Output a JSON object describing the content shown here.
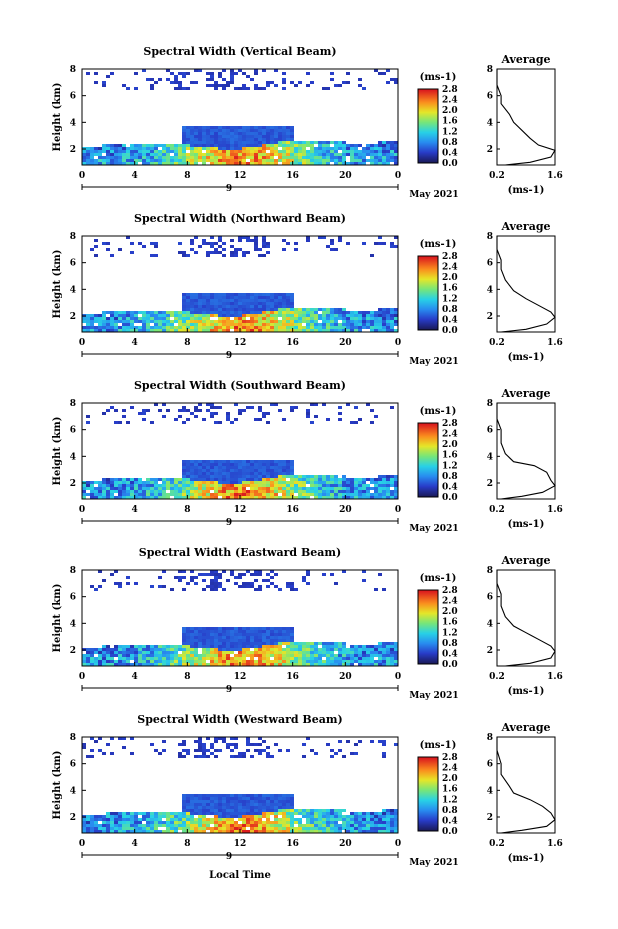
{
  "chart_data": [
    {
      "type": "heatmap",
      "title": "Spectral Width (Vertical Beam)",
      "ylabel": "Height (km)",
      "x_ticks": [
        "0",
        "4",
        "8",
        "12",
        "16",
        "20",
        "0"
      ],
      "y_ticks": [
        "2",
        "4",
        "6",
        "8"
      ],
      "xlim": [
        0,
        24
      ],
      "ylim": [
        0.8,
        8
      ],
      "day_label": "9",
      "date_label": "May 2021",
      "colorbar_unit": "(ms-1)",
      "colorbar_ticks": [
        "0.0",
        "0.4",
        "0.8",
        "1.2",
        "1.6",
        "2.0",
        "2.4",
        "2.8"
      ],
      "avg_title": "Average",
      "avg_xlabel": "(ms-1)",
      "avg_x_ticks": [
        "0.2",
        "1.6"
      ],
      "avg_y_ticks": [
        "2",
        "4",
        "6",
        "8"
      ],
      "avg_profile": [
        [
          0.2,
          8.0
        ],
        [
          0.2,
          6.8
        ],
        [
          0.3,
          6.0
        ],
        [
          0.3,
          5.4
        ],
        [
          0.5,
          4.6
        ],
        [
          0.6,
          4.0
        ],
        [
          0.8,
          3.4
        ],
        [
          1.0,
          2.8
        ],
        [
          1.2,
          2.3
        ],
        [
          1.6,
          1.9
        ],
        [
          1.5,
          1.4
        ],
        [
          1.0,
          1.0
        ],
        [
          0.4,
          0.8
        ]
      ]
    },
    {
      "type": "heatmap",
      "title": "Spectral Width (Northward Beam)",
      "ylabel": "Height (km)",
      "x_ticks": [
        "0",
        "4",
        "8",
        "12",
        "16",
        "20",
        "0"
      ],
      "y_ticks": [
        "2",
        "4",
        "6",
        "8"
      ],
      "xlim": [
        0,
        24
      ],
      "ylim": [
        0.8,
        8
      ],
      "day_label": "9",
      "date_label": "May 2021",
      "colorbar_unit": "(ms-1)",
      "colorbar_ticks": [
        "0.0",
        "0.4",
        "0.8",
        "1.2",
        "1.6",
        "2.0",
        "2.4",
        "2.8"
      ],
      "avg_title": "Average",
      "avg_xlabel": "(ms-1)",
      "avg_x_ticks": [
        "0.2",
        "1.6"
      ],
      "avg_y_ticks": [
        "2",
        "4",
        "6",
        "8"
      ],
      "avg_profile": [
        [
          0.2,
          8.0
        ],
        [
          0.2,
          7.0
        ],
        [
          0.3,
          6.2
        ],
        [
          0.3,
          5.5
        ],
        [
          0.4,
          4.7
        ],
        [
          0.6,
          3.9
        ],
        [
          0.9,
          3.3
        ],
        [
          1.2,
          2.8
        ],
        [
          1.5,
          2.3
        ],
        [
          1.6,
          1.9
        ],
        [
          1.4,
          1.4
        ],
        [
          0.9,
          1.0
        ],
        [
          0.3,
          0.8
        ]
      ]
    },
    {
      "type": "heatmap",
      "title": "Spectral Width (Southward Beam)",
      "ylabel": "Height (km)",
      "x_ticks": [
        "0",
        "4",
        "8",
        "12",
        "16",
        "20",
        "0"
      ],
      "y_ticks": [
        "2",
        "4",
        "6",
        "8"
      ],
      "xlim": [
        0,
        24
      ],
      "ylim": [
        0.8,
        8
      ],
      "day_label": "9",
      "date_label": "May 2021",
      "colorbar_unit": "(ms-1)",
      "colorbar_ticks": [
        "0.0",
        "0.4",
        "0.8",
        "1.2",
        "1.6",
        "2.0",
        "2.4",
        "2.8"
      ],
      "avg_title": "Average",
      "avg_xlabel": "(ms-1)",
      "avg_x_ticks": [
        "0.2",
        "1.6"
      ],
      "avg_y_ticks": [
        "2",
        "4",
        "6",
        "8"
      ],
      "avg_profile": [
        [
          0.2,
          8.0
        ],
        [
          0.2,
          6.8
        ],
        [
          0.3,
          6.0
        ],
        [
          0.3,
          5.0
        ],
        [
          0.4,
          4.2
        ],
        [
          0.6,
          3.6
        ],
        [
          1.1,
          3.3
        ],
        [
          1.4,
          2.8
        ],
        [
          1.5,
          2.2
        ],
        [
          1.6,
          1.8
        ],
        [
          1.3,
          1.3
        ],
        [
          0.8,
          1.0
        ],
        [
          0.3,
          0.8
        ]
      ]
    },
    {
      "type": "heatmap",
      "title": "Spectral Width (Eastward Beam)",
      "ylabel": "Height (km)",
      "x_ticks": [
        "0",
        "4",
        "8",
        "12",
        "16",
        "20",
        "0"
      ],
      "y_ticks": [
        "2",
        "4",
        "6",
        "8"
      ],
      "xlim": [
        0,
        24
      ],
      "ylim": [
        0.8,
        8
      ],
      "day_label": "9",
      "date_label": "May 2021",
      "colorbar_unit": "(ms-1)",
      "colorbar_ticks": [
        "0.0",
        "0.4",
        "0.8",
        "1.2",
        "1.6",
        "2.0",
        "2.4",
        "2.8"
      ],
      "avg_title": "Average",
      "avg_xlabel": "(ms-1)",
      "avg_x_ticks": [
        "0.2",
        "1.6"
      ],
      "avg_y_ticks": [
        "2",
        "4",
        "6",
        "8"
      ],
      "avg_profile": [
        [
          0.2,
          8.0
        ],
        [
          0.2,
          7.0
        ],
        [
          0.3,
          6.2
        ],
        [
          0.3,
          5.3
        ],
        [
          0.4,
          4.5
        ],
        [
          0.6,
          3.8
        ],
        [
          0.9,
          3.3
        ],
        [
          1.2,
          2.8
        ],
        [
          1.5,
          2.3
        ],
        [
          1.6,
          1.9
        ],
        [
          1.5,
          1.4
        ],
        [
          1.0,
          1.0
        ],
        [
          0.4,
          0.8
        ]
      ]
    },
    {
      "type": "heatmap",
      "title": "Spectral Width (Westward Beam)",
      "ylabel": "Height (km)",
      "xlabel": "Local Time",
      "x_ticks": [
        "0",
        "4",
        "8",
        "12",
        "16",
        "20",
        "0"
      ],
      "y_ticks": [
        "2",
        "4",
        "6",
        "8"
      ],
      "xlim": [
        0,
        24
      ],
      "ylim": [
        0.8,
        8
      ],
      "day_label": "9",
      "date_label": "May 2021",
      "colorbar_unit": "(ms-1)",
      "colorbar_ticks": [
        "0.0",
        "0.4",
        "0.8",
        "1.2",
        "1.6",
        "2.0",
        "2.4",
        "2.8"
      ],
      "avg_title": "Average",
      "avg_xlabel": "(ms-1)",
      "avg_x_ticks": [
        "0.2",
        "1.6"
      ],
      "avg_y_ticks": [
        "2",
        "4",
        "6",
        "8"
      ],
      "avg_profile": [
        [
          0.2,
          8.0
        ],
        [
          0.2,
          7.0
        ],
        [
          0.3,
          6.0
        ],
        [
          0.3,
          5.2
        ],
        [
          0.5,
          4.3
        ],
        [
          0.6,
          3.8
        ],
        [
          1.0,
          3.3
        ],
        [
          1.3,
          2.8
        ],
        [
          1.5,
          2.3
        ],
        [
          1.6,
          1.8
        ],
        [
          1.4,
          1.3
        ],
        [
          0.8,
          1.0
        ],
        [
          0.3,
          0.8
        ]
      ]
    }
  ]
}
